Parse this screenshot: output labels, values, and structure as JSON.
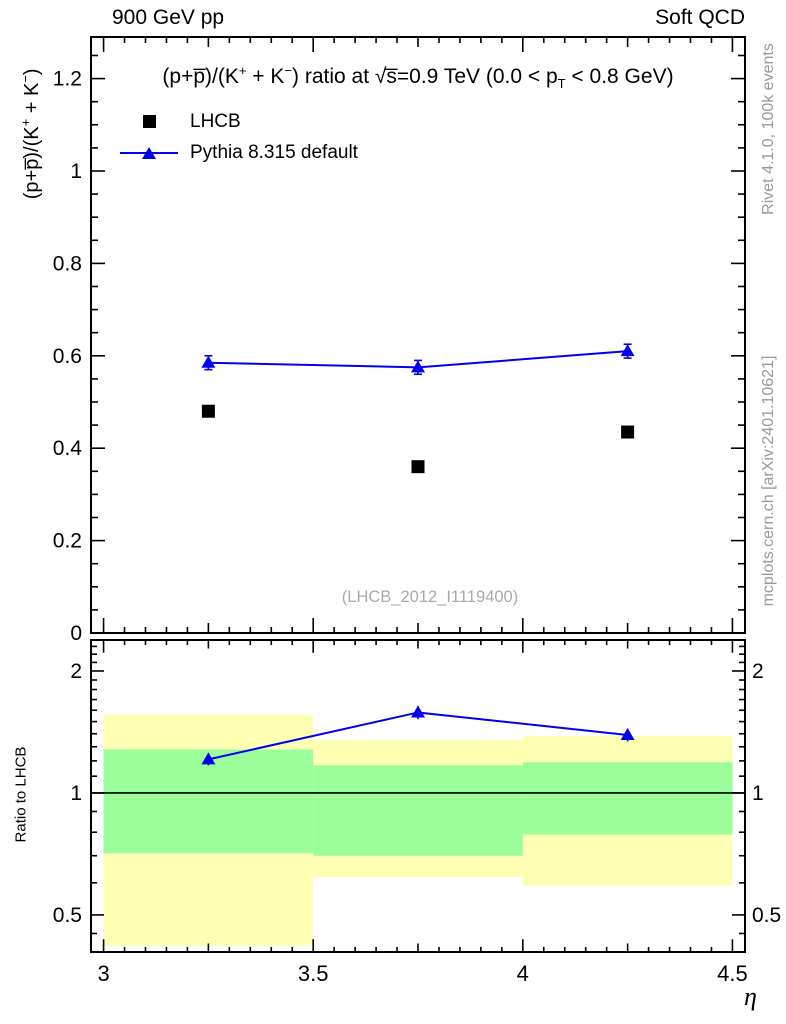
{
  "header": {
    "left": "900 GeV pp",
    "right": "Soft QCD"
  },
  "side_captions": {
    "top_right": "Rivet 4.1.0,  100k events",
    "bottom_right": "mcplots.cern.ch [arXiv:2401.10621]"
  },
  "colors": {
    "pythia_blue": "#0000ee",
    "lhcb_black": "#000000",
    "band_outer_yellow": "#ffffb3",
    "band_inner_green": "#9aff9a",
    "gray_caption": "#999999",
    "watermark_gray": "#aaaaaa",
    "frame": "#000000"
  },
  "main_panel": {
    "title_rich": "(p+p&#773;)/(K<sup>+</sup> + K<sup>&#8722;</sup>) ratio at &#8730;s&#773;=0.9 TeV (0.0 &lt; p<sub>T</sub> &lt; 0.8 GeV)",
    "ylabel_rich": "(p+p&#773;)/(K<sup>+</sup> + K<sup>&#8722;</sup>)",
    "watermark": "(LHCB_2012_I1119400)",
    "legend": [
      {
        "label": "LHCB",
        "marker": "filled-square",
        "color": "#000000"
      },
      {
        "label": "Pythia 8.315 default",
        "marker": "line-with-triangle",
        "color": "#0000ee"
      }
    ]
  },
  "ratio_panel": {
    "ylabel": "Ratio to LHCB"
  },
  "xaxis": {
    "label": "η"
  },
  "chart_data": [
    {
      "panel": "main",
      "type": "scatter",
      "title": "(p+pbar)/(K+ + K-) ratio at sqrt(s)=0.9 TeV (0.0 < pT < 0.8 GeV)",
      "ylabel": "(p+pbar)/(K+ + K-)",
      "xlabel": "eta",
      "xlim": [
        2.97,
        4.53
      ],
      "ylim": [
        0,
        1.29
      ],
      "xticks": [
        3,
        3.5,
        4,
        4.5
      ],
      "yticks": [
        0,
        0.2,
        0.4,
        0.6,
        0.8,
        1,
        1.2
      ],
      "grid": false,
      "legend_position": "top-left",
      "watermark": "(LHCB_2012_I1119400)",
      "series": [
        {
          "name": "LHCB",
          "type": "scatter",
          "marker": "filled-square",
          "color": "#000000",
          "x": [
            3.25,
            3.75,
            4.25
          ],
          "y": [
            0.48,
            0.36,
            0.435
          ]
        },
        {
          "name": "Pythia 8.315 default",
          "type": "line+scatter",
          "marker": "filled-triangle-up",
          "color": "#0000ee",
          "x": [
            3.25,
            3.75,
            4.25
          ],
          "y": [
            0.585,
            0.575,
            0.61
          ],
          "yerr": [
            0.015,
            0.015,
            0.015
          ]
        }
      ]
    },
    {
      "panel": "ratio",
      "type": "line",
      "ylabel": "Ratio to LHCB",
      "yscale": "log",
      "xlim": [
        2.97,
        4.53
      ],
      "ylim": [
        0.405,
        2.385
      ],
      "xticks": [
        3,
        3.5,
        4,
        4.5
      ],
      "yticks": [
        0.5,
        1,
        2
      ],
      "reference_line": 1,
      "bands": [
        {
          "x": [
            3.0,
            3.5
          ],
          "outer": [
            0.42,
            1.56
          ],
          "inner": [
            0.71,
            1.28
          ]
        },
        {
          "x": [
            3.5,
            4.0
          ],
          "outer": [
            0.62,
            1.35
          ],
          "inner": [
            0.7,
            1.17
          ]
        },
        {
          "x": [
            4.0,
            4.5
          ],
          "outer": [
            0.59,
            1.38
          ],
          "inner": [
            0.79,
            1.19
          ]
        }
      ],
      "series": [
        {
          "name": "Pythia 8.315 default / LHCB",
          "type": "line+scatter",
          "marker": "filled-triangle-up",
          "color": "#0000ee",
          "x": [
            3.25,
            3.75,
            4.25
          ],
          "y": [
            1.21,
            1.58,
            1.39
          ],
          "yerr": [
            0.04,
            0.06,
            0.05
          ]
        }
      ]
    }
  ]
}
